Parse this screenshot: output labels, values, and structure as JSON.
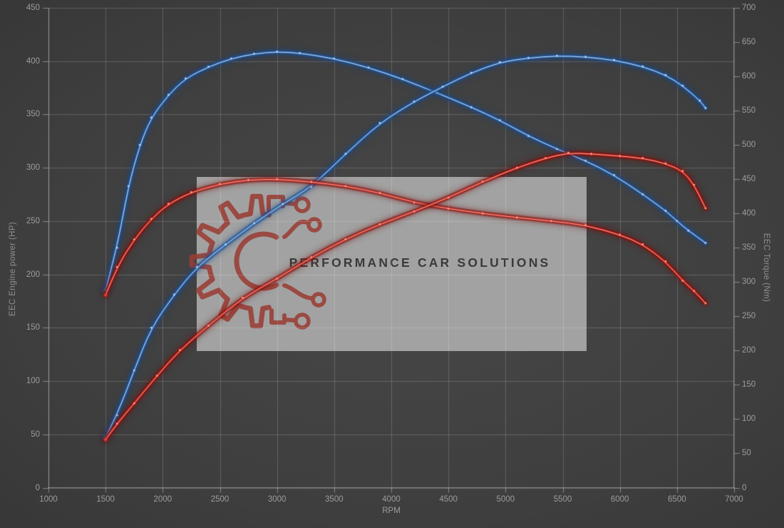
{
  "chart": {
    "x_axis": {
      "label": "RPM",
      "min": 1000,
      "max": 7000,
      "ticks": [
        1000,
        1500,
        2000,
        2500,
        3000,
        3500,
        4000,
        4500,
        5000,
        5500,
        6000,
        6500,
        7000
      ]
    },
    "left_axis": {
      "label": "EEC Engine power (HP)",
      "min": 0,
      "max": 450,
      "ticks": [
        0,
        50,
        100,
        150,
        200,
        250,
        300,
        350,
        400,
        450
      ]
    },
    "right_axis": {
      "label": "EEC Torque (Nm)",
      "min": 0,
      "max": 700,
      "ticks": [
        0,
        50,
        100,
        150,
        200,
        250,
        300,
        350,
        400,
        450,
        500,
        550,
        600,
        650,
        700
      ]
    }
  },
  "watermark": {
    "text": "PERFORMANCE CAR SOLUTIONS",
    "box_color": "rgba(168,168,168,0.95)",
    "logo_color": "#9a3e35",
    "text_color": "#3a3a3a"
  },
  "chart_data": {
    "type": "line",
    "title": "",
    "xlabel": "RPM",
    "ylabel_left": "EEC Engine power (HP)",
    "ylabel_right": "EEC Torque (Nm)",
    "x_range": [
      1000,
      7000
    ],
    "left_range": [
      0,
      450
    ],
    "right_range": [
      0,
      700
    ],
    "grid": true,
    "legend_position": "none",
    "series": [
      {
        "name": "tuned-torque-nm",
        "axis": "right",
        "color": "#3a72b5",
        "glow": "#1a4c8f",
        "core": "#bdd7f2",
        "x": [
          1500,
          1600,
          1700,
          1800,
          1900,
          2050,
          2200,
          2400,
          2600,
          2800,
          3000,
          3200,
          3500,
          3800,
          4100,
          4400,
          4700,
          4950,
          5200,
          5450,
          5700,
          5950,
          6200,
          6400,
          6500,
          6600,
          6750
        ],
        "values": [
          288,
          350,
          440,
          500,
          540,
          573,
          597,
          614,
          626,
          633,
          636,
          634,
          626,
          613,
          596,
          576,
          555,
          536,
          513,
          494,
          477,
          456,
          428,
          404,
          389,
          375,
          357
        ]
      },
      {
        "name": "tuned-power-hp",
        "axis": "left",
        "color": "#3a72b5",
        "glow": "#1a4c8f",
        "core": "#bdd7f2",
        "x": [
          1500,
          1600,
          1750,
          1900,
          2100,
          2300,
          2550,
          2800,
          3050,
          3300,
          3600,
          3900,
          4200,
          4450,
          4700,
          4950,
          5200,
          5450,
          5700,
          5950,
          6200,
          6400,
          6550,
          6700,
          6750
        ],
        "values": [
          47,
          68,
          110,
          150,
          181,
          207,
          228,
          248,
          266,
          282,
          313,
          342,
          362,
          376,
          389,
          399,
          403,
          405,
          404,
          401,
          395,
          387,
          377,
          363,
          356
        ]
      },
      {
        "name": "original-torque-nm",
        "axis": "right",
        "color": "#cf2a22",
        "glow": "#7e100c",
        "core": "#ffa193",
        "x": [
          1500,
          1600,
          1750,
          1900,
          2050,
          2250,
          2500,
          2750,
          3000,
          3300,
          3600,
          3900,
          4200,
          4500,
          4800,
          5100,
          5400,
          5700,
          6000,
          6200,
          6400,
          6550,
          6650,
          6750
        ],
        "values": [
          281,
          322,
          362,
          392,
          414,
          431,
          443,
          449,
          450,
          446,
          440,
          430,
          416,
          407,
          400,
          394,
          389,
          383,
          369,
          355,
          330,
          302,
          287,
          269
        ]
      },
      {
        "name": "original-power-hp",
        "axis": "left",
        "color": "#cf2a22",
        "glow": "#7e100c",
        "core": "#ffa193",
        "x": [
          1500,
          1600,
          1750,
          1950,
          2150,
          2400,
          2700,
          3000,
          3300,
          3600,
          3900,
          4200,
          4500,
          4800,
          5100,
          5350,
          5550,
          5750,
          6000,
          6200,
          6400,
          6550,
          6650,
          6750
        ],
        "values": [
          45,
          60,
          79,
          105,
          129,
          152,
          178,
          196,
          216,
          233,
          247,
          259,
          272,
          287,
          300,
          309,
          314,
          313,
          311,
          309,
          304,
          297,
          284,
          262
        ]
      }
    ]
  }
}
